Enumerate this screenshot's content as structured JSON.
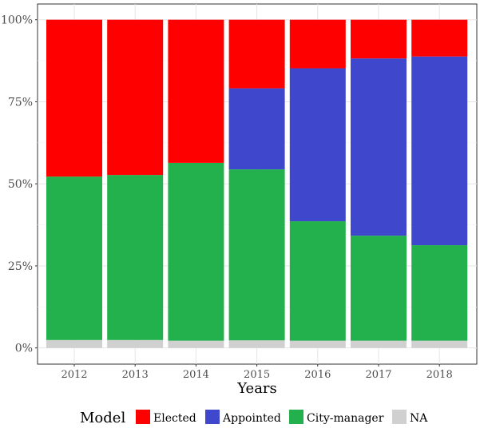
{
  "chart_data": {
    "type": "bar",
    "stacked": true,
    "xlabel": "Years",
    "ylabel": "",
    "ylim": [
      0,
      100
    ],
    "yticks": [
      "0%",
      "25%",
      "50%",
      "75%",
      "100%"
    ],
    "categories": [
      "2012",
      "2013",
      "2014",
      "2015",
      "2016",
      "2017",
      "2018"
    ],
    "legend_title": "Model",
    "legend_position": "bottom",
    "series": [
      {
        "name": "NA",
        "color": "#d0d0d0",
        "values": [
          2.4,
          2.4,
          2.2,
          2.3,
          2.2,
          2.2,
          2.2
        ]
      },
      {
        "name": "City-manager",
        "color": "#23b14d",
        "values": [
          49.8,
          50.3,
          54.2,
          52.1,
          36.4,
          32.0,
          29.1
        ]
      },
      {
        "name": "Appointed",
        "color": "#3f48cc",
        "values": [
          0,
          0,
          0,
          24.7,
          46.6,
          54.0,
          57.5
        ]
      },
      {
        "name": "Elected",
        "color": "#ff0000",
        "values": [
          47.8,
          47.3,
          43.6,
          20.9,
          14.8,
          11.8,
          11.2
        ]
      }
    ],
    "legend_order": [
      "Elected",
      "Appointed",
      "City-manager",
      "NA"
    ]
  }
}
